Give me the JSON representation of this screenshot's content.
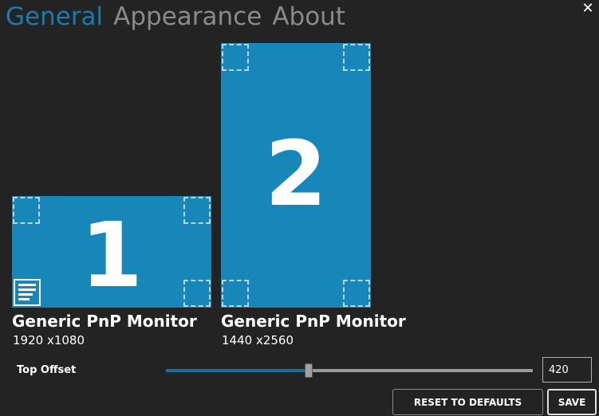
{
  "tabs": {
    "general": "General",
    "appearance": "Appearance",
    "about": "About"
  },
  "window": {
    "close_glyph": "✕"
  },
  "monitors": [
    {
      "number": "1",
      "name": "Generic PnP Monitor",
      "resolution": "1920 x1080",
      "has_taskbar": true
    },
    {
      "number": "2",
      "name": "Generic PnP Monitor",
      "resolution": "1440 x2560",
      "has_taskbar": false
    }
  ],
  "offset": {
    "label": "Top Offset",
    "value": "420",
    "slider_fraction": 0.39
  },
  "buttons": {
    "reset": "RESET TO DEFAULTS",
    "save": "SAVE"
  },
  "colors": {
    "background": "#232323",
    "accent": "#1a7bb0",
    "monitor": "#1786b8",
    "inactive_tab": "#8a8a8a"
  },
  "icons": {
    "close": "close-icon",
    "taskbar": "taskbar-icon",
    "hot_corner": "hot-corner-zone"
  }
}
